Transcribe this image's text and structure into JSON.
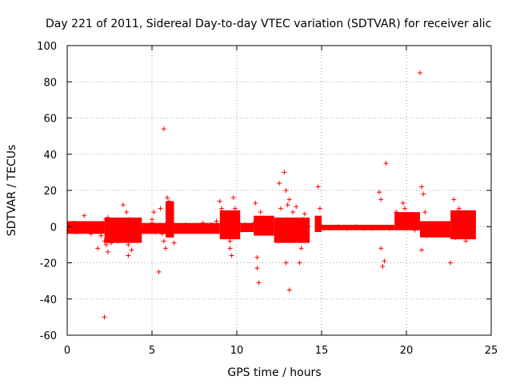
{
  "chart_data": {
    "type": "scatter",
    "title": "Day 221 of 2011, Sidereal Day-to-day VTEC variation (SDTVAR) for receiver alic",
    "xlabel": "GPS time / hours",
    "ylabel": "SDTVAR / TECUs",
    "xlim": [
      0,
      25
    ],
    "ylim": [
      -60,
      100
    ],
    "xticks": [
      0,
      5,
      10,
      15,
      20,
      25
    ],
    "xtick_labels": [
      "0",
      "5",
      "10",
      "15",
      "20",
      "25"
    ],
    "yticks": [
      -60,
      -40,
      -20,
      0,
      20,
      40,
      60,
      80,
      100
    ],
    "ytick_labels": [
      "-60",
      "-40",
      "-20",
      "0",
      "20",
      "40",
      "60",
      "80",
      "100"
    ],
    "grid": true,
    "marker": "plus",
    "color": "#ff0000",
    "series": [
      {
        "name": "SDTVAR",
        "points": [
          [
            0.1,
            -2
          ],
          [
            0.2,
            1
          ],
          [
            0.3,
            -1
          ],
          [
            0.4,
            2
          ],
          [
            0.5,
            -3
          ],
          [
            0.6,
            0
          ],
          [
            0.8,
            -2
          ],
          [
            0.9,
            1
          ],
          [
            1.0,
            -1
          ],
          [
            1.2,
            0.5
          ],
          [
            1.4,
            -2
          ],
          [
            1.6,
            1
          ],
          [
            1.8,
            -1
          ],
          [
            2.0,
            -3
          ],
          [
            2.1,
            0
          ],
          [
            1.0,
            6
          ],
          [
            1.4,
            -4
          ],
          [
            1.8,
            -12
          ],
          [
            2.0,
            -5
          ],
          [
            2.2,
            -50
          ],
          [
            2.2,
            -8
          ],
          [
            2.3,
            4
          ],
          [
            2.3,
            -10
          ],
          [
            2.4,
            -14
          ],
          [
            2.4,
            5
          ],
          [
            2.5,
            -6
          ],
          [
            2.5,
            2
          ],
          [
            2.6,
            -9
          ],
          [
            2.7,
            -3
          ],
          [
            2.8,
            1
          ],
          [
            2.9,
            -4
          ],
          [
            3.0,
            -8
          ],
          [
            3.1,
            2
          ],
          [
            3.2,
            -6
          ],
          [
            3.3,
            12
          ],
          [
            3.4,
            -3
          ],
          [
            3.5,
            8
          ],
          [
            3.6,
            -10
          ],
          [
            3.6,
            -16
          ],
          [
            3.7,
            4
          ],
          [
            3.8,
            -13
          ],
          [
            3.9,
            -2
          ],
          [
            4.0,
            3
          ],
          [
            4.1,
            -5
          ],
          [
            4.2,
            1
          ],
          [
            4.4,
            -2
          ],
          [
            4.6,
            0
          ],
          [
            4.8,
            -1
          ],
          [
            5.0,
            2
          ],
          [
            5.0,
            4
          ],
          [
            5.1,
            8
          ],
          [
            5.2,
            -3
          ],
          [
            5.4,
            -25
          ],
          [
            5.5,
            10
          ],
          [
            5.6,
            -4
          ],
          [
            5.7,
            54
          ],
          [
            5.7,
            -8
          ],
          [
            5.8,
            -12
          ],
          [
            5.9,
            2
          ],
          [
            5.9,
            16
          ],
          [
            6.0,
            14
          ],
          [
            6.0,
            10
          ],
          [
            6.1,
            6
          ],
          [
            6.2,
            2
          ],
          [
            6.3,
            -9
          ],
          [
            6.4,
            0
          ],
          [
            6.5,
            -2
          ],
          [
            6.8,
            -1
          ],
          [
            7.0,
            1
          ],
          [
            7.2,
            -2
          ],
          [
            7.5,
            0
          ],
          [
            7.8,
            -1
          ],
          [
            8.0,
            2
          ],
          [
            8.2,
            -1
          ],
          [
            8.5,
            1
          ],
          [
            8.8,
            3
          ],
          [
            9.0,
            14
          ],
          [
            9.1,
            10
          ],
          [
            9.2,
            6
          ],
          [
            9.3,
            -2
          ],
          [
            9.4,
            4
          ],
          [
            9.6,
            -8
          ],
          [
            9.6,
            -12
          ],
          [
            9.7,
            -16
          ],
          [
            9.8,
            16
          ],
          [
            9.9,
            10
          ],
          [
            10.0,
            6
          ],
          [
            10.1,
            2
          ],
          [
            10.3,
            -2
          ],
          [
            10.5,
            1
          ],
          [
            10.8,
            -1
          ],
          [
            11.0,
            2
          ],
          [
            11.1,
            13
          ],
          [
            11.2,
            -17
          ],
          [
            11.2,
            -23
          ],
          [
            11.3,
            -31
          ],
          [
            11.4,
            8
          ],
          [
            11.5,
            4
          ],
          [
            11.6,
            0
          ],
          [
            12.0,
            -1
          ],
          [
            12.3,
            1
          ],
          [
            12.5,
            24
          ],
          [
            12.6,
            10
          ],
          [
            12.7,
            -6
          ],
          [
            12.8,
            30
          ],
          [
            12.9,
            -20
          ],
          [
            12.9,
            20
          ],
          [
            13.0,
            12
          ],
          [
            13.1,
            15
          ],
          [
            13.1,
            -35
          ],
          [
            13.2,
            -3
          ],
          [
            13.3,
            8
          ],
          [
            13.4,
            2
          ],
          [
            13.5,
            11
          ],
          [
            13.6,
            -5
          ],
          [
            13.7,
            -20
          ],
          [
            13.8,
            -12
          ],
          [
            13.9,
            4
          ],
          [
            14.0,
            7
          ],
          [
            14.1,
            -4
          ],
          [
            14.2,
            0
          ],
          [
            14.8,
            22
          ],
          [
            14.9,
            10
          ],
          [
            15.0,
            0
          ],
          [
            15.5,
            -1
          ],
          [
            16.0,
            0
          ],
          [
            16.5,
            -1
          ],
          [
            17.0,
            0
          ],
          [
            17.5,
            -1
          ],
          [
            18.0,
            -1
          ],
          [
            18.4,
            19
          ],
          [
            18.5,
            15
          ],
          [
            18.5,
            -12
          ],
          [
            18.6,
            -22
          ],
          [
            18.7,
            -19
          ],
          [
            18.8,
            35
          ],
          [
            19.0,
            -1
          ],
          [
            19.4,
            8
          ],
          [
            19.6,
            5
          ],
          [
            19.8,
            13
          ],
          [
            19.9,
            10
          ],
          [
            20.0,
            5
          ],
          [
            20.2,
            2
          ],
          [
            20.5,
            -2
          ],
          [
            20.8,
            85
          ],
          [
            20.9,
            -13
          ],
          [
            20.9,
            22
          ],
          [
            21.0,
            18
          ],
          [
            21.1,
            8
          ],
          [
            21.2,
            -4
          ],
          [
            21.5,
            -2
          ],
          [
            22.0,
            -1
          ],
          [
            22.3,
            1
          ],
          [
            22.6,
            -20
          ],
          [
            22.7,
            -4
          ],
          [
            22.8,
            15
          ],
          [
            22.9,
            -6
          ],
          [
            23.0,
            8
          ],
          [
            23.1,
            10
          ],
          [
            23.3,
            4
          ],
          [
            23.5,
            -8
          ],
          [
            23.7,
            2
          ],
          [
            23.9,
            -1
          ]
        ],
        "bands": [
          {
            "x": [
              0.0,
              2.2
            ],
            "low": -4,
            "high": 3
          },
          {
            "x": [
              2.2,
              4.4
            ],
            "low": -9,
            "high": 5
          },
          {
            "x": [
              4.4,
              5.8
            ],
            "low": -4,
            "high": 2
          },
          {
            "x": [
              5.8,
              6.3
            ],
            "low": -6,
            "high": 14
          },
          {
            "x": [
              6.3,
              9.0
            ],
            "low": -4,
            "high": 2
          },
          {
            "x": [
              9.0,
              10.2
            ],
            "low": -7,
            "high": 9
          },
          {
            "x": [
              10.2,
              11.0
            ],
            "low": -3,
            "high": 2
          },
          {
            "x": [
              11.0,
              12.2
            ],
            "low": -5,
            "high": 6
          },
          {
            "x": [
              12.2,
              14.3
            ],
            "low": -9,
            "high": 5
          },
          {
            "x": [
              14.6,
              15.0
            ],
            "low": -3,
            "high": 6
          },
          {
            "x": [
              15.0,
              19.3
            ],
            "low": -2,
            "high": 1
          },
          {
            "x": [
              19.3,
              20.8
            ],
            "low": -2,
            "high": 8
          },
          {
            "x": [
              20.8,
              22.6
            ],
            "low": -6,
            "high": 3
          },
          {
            "x": [
              22.6,
              24.1
            ],
            "low": -7,
            "high": 9
          }
        ]
      }
    ]
  }
}
